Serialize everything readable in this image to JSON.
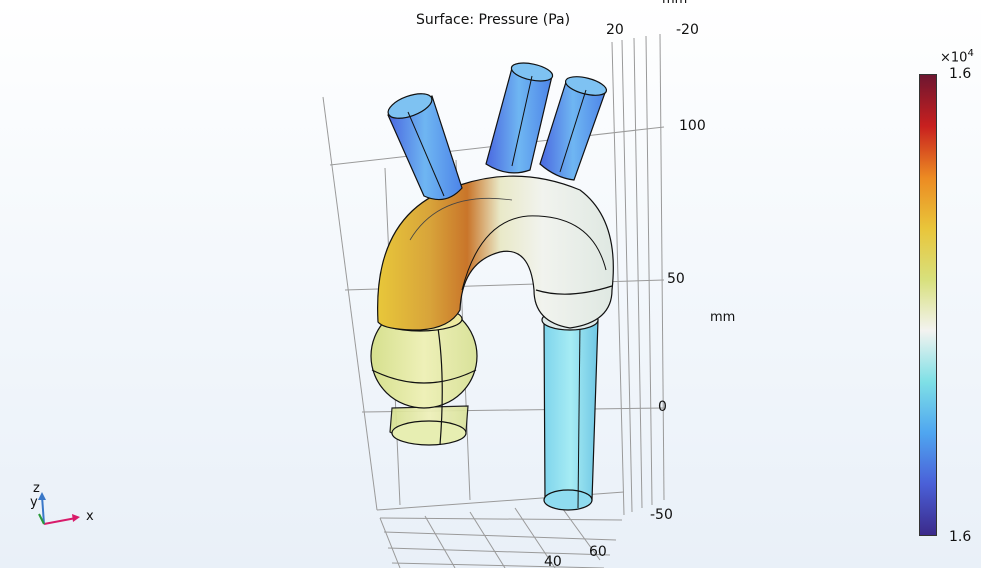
{
  "plot": {
    "title": "Surface: Pressure (Pa)"
  },
  "axes": {
    "z_unit": "mm",
    "y_unit_top": "mm",
    "z_ticks": [
      "100",
      "50",
      "0",
      "-50"
    ],
    "y_ticks_top": [
      "20",
      "-20"
    ],
    "x_ticks_bottom": [
      "40",
      "60"
    ]
  },
  "colorbar": {
    "exponent_prefix": "×10",
    "exponent": "4",
    "max_label": "1.6",
    "min_label": "1.6",
    "colors": [
      "#3b2a8a",
      "#4a60d8",
      "#4fa6f0",
      "#7fe0e6",
      "#f3f3f0",
      "#d8e07c",
      "#e9c53a",
      "#ec8a22",
      "#c8201f",
      "#6e1630"
    ]
  },
  "triad": {
    "x": "x",
    "y": "y",
    "z": "z"
  }
}
